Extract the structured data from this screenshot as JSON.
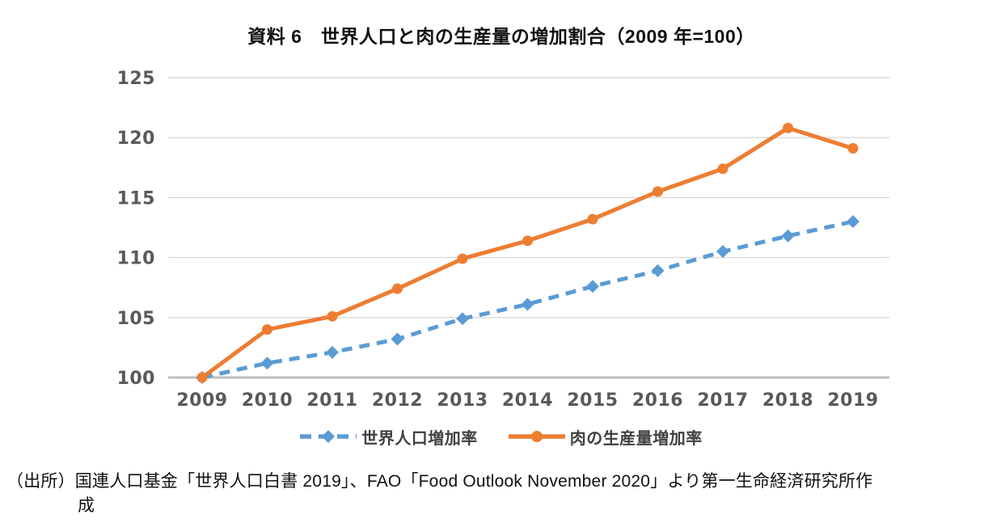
{
  "title": "資料 6　世界人口と肉の生産量の増加割合（2009 年=100）",
  "source": {
    "line1": "（出所）国連人口基金「世界人口白書 2019」、FAO「Food Outlook November 2020」より第一生命経済研究所作",
    "line2": "成"
  },
  "colors": {
    "population_series": "#5B9BD5",
    "meat_series": "#ED7D31",
    "gridline": "#D9D9D9",
    "baseline_axis": "#BFBFBF",
    "tick_label": "#595959",
    "legend_text": "#404040",
    "title_text": "#111111"
  },
  "chart_data": {
    "type": "line",
    "title": "資料 6　世界人口と肉の生産量の増加割合（2009 年=100）",
    "categories": [
      "2009",
      "2010",
      "2011",
      "2012",
      "2013",
      "2014",
      "2015",
      "2016",
      "2017",
      "2018",
      "2019"
    ],
    "series": [
      {
        "name": "世界人口増加率",
        "color": "#5B9BD5",
        "line_style": "dashed",
        "marker": "diamond",
        "values": [
          100,
          101.2,
          102.1,
          103.2,
          104.9,
          106.1,
          107.6,
          108.9,
          110.5,
          111.8,
          113.0
        ]
      },
      {
        "name": "肉の生産量増加率",
        "color": "#ED7D31",
        "line_style": "solid",
        "marker": "circle",
        "values": [
          100,
          104.0,
          105.1,
          107.4,
          109.9,
          111.4,
          113.2,
          115.5,
          117.4,
          120.8,
          119.1
        ]
      }
    ],
    "xlabel": "",
    "ylabel": "",
    "ylim": [
      100,
      125
    ],
    "ytick_step": 5,
    "yticks": [
      100,
      105,
      110,
      115,
      120,
      125
    ],
    "grid": true,
    "legend_position": "bottom"
  }
}
